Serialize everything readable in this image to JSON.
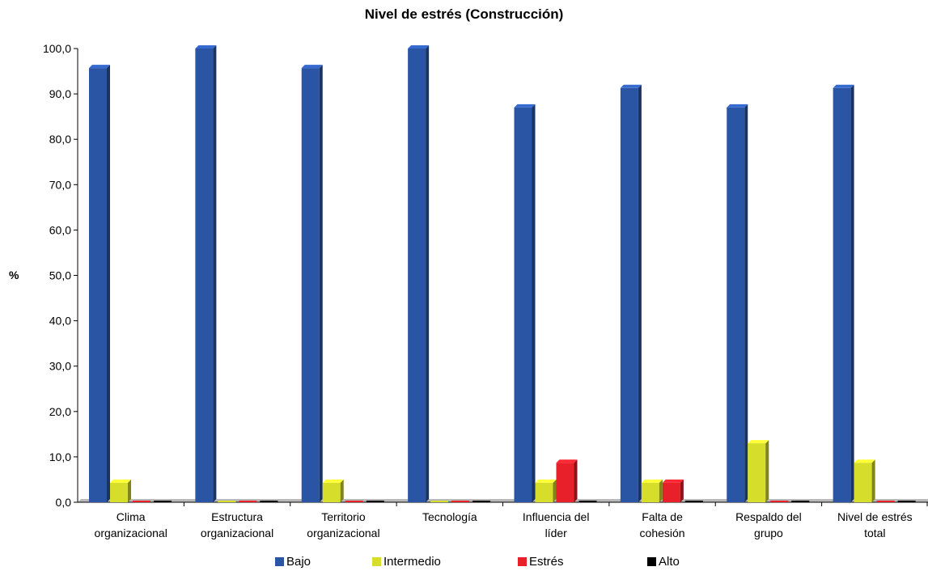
{
  "chart_data": {
    "type": "bar",
    "title": "Nivel de estrés (Construcción)",
    "ylabel": "%",
    "xlabel": "",
    "ylim": [
      0,
      100
    ],
    "yticks": [
      "0,0",
      "10,0",
      "20,0",
      "30,0",
      "40,0",
      "50,0",
      "60,0",
      "70,0",
      "80,0",
      "90,0",
      "100,0"
    ],
    "categories": [
      [
        "Clima",
        "organizacional"
      ],
      [
        "Estructura",
        "organizacional"
      ],
      [
        "Territorio",
        "organizacional"
      ],
      [
        "Tecnología"
      ],
      [
        "Influencia del",
        "líder"
      ],
      [
        "Falta de",
        "cohesión"
      ],
      [
        "Respaldo del",
        "grupo"
      ],
      [
        "Nivel de estrés",
        "total"
      ]
    ],
    "series": [
      {
        "name": "Bajo",
        "color": "#2a55a5",
        "values": [
          95.7,
          100,
          95.7,
          100,
          87.0,
          91.3,
          87.0,
          91.3
        ]
      },
      {
        "name": "Intermedio",
        "color": "#d6dd2a",
        "values": [
          4.3,
          0,
          4.3,
          0,
          4.3,
          4.3,
          13.0,
          8.7
        ]
      },
      {
        "name": "Estrés",
        "color": "#e8202a",
        "values": [
          0,
          0,
          0,
          0,
          8.7,
          4.3,
          0,
          0
        ]
      },
      {
        "name": "Alto",
        "color": "#000000",
        "values": [
          0,
          0,
          0,
          0,
          0,
          0,
          0,
          0
        ]
      }
    ],
    "legend_position": "bottom",
    "grid": false
  }
}
